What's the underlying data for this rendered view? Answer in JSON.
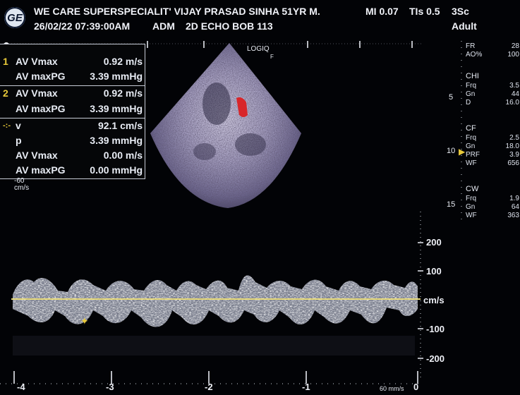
{
  "header": {
    "logo_text": "GE",
    "institution_patient": "WE CARE SUPERSPECIALIT' VIJAY PRASAD SINHA 51YR M.",
    "datetime": "26/02/22 07:39:00AM",
    "operator": "ADM",
    "exam": "2D ECHO BOB 113",
    "mi": "MI 0.07",
    "tis": "TIs 0.5",
    "probe": "3Sc",
    "preset": "Adult"
  },
  "sector": {
    "label": "LOGIQ",
    "focus_marker": "F"
  },
  "measurements": [
    {
      "idx": "1",
      "label": "AV Vmax",
      "value": "0.92 m/s"
    },
    {
      "idx": "",
      "label": "AV maxPG",
      "value": "3.39 mmHg"
    },
    {
      "idx": "2",
      "label": "AV Vmax",
      "value": "0.92 m/s"
    },
    {
      "idx": "",
      "label": "AV maxPG",
      "value": "3.39 mmHg"
    },
    {
      "idx": "-:-",
      "label": "v",
      "value": "92.1 cm/s"
    },
    {
      "idx": "",
      "label": "p",
      "value": "3.39 mmHg"
    },
    {
      "idx": "",
      "label": "AV Vmax",
      "value": "0.00 m/s"
    },
    {
      "idx": "",
      "label": "AV maxPG",
      "value": "0.00 mmHg"
    }
  ],
  "doppler_baseline_label": "-60",
  "doppler_baseline_unit": "cm/s",
  "params": {
    "top": [
      {
        "label": "FR",
        "value": "28"
      },
      {
        "label": "AO%",
        "value": "100"
      }
    ],
    "chi_title": "CHI",
    "chi": [
      {
        "label": "Frq",
        "value": "3.5"
      },
      {
        "label": "Gn",
        "value": "44"
      },
      {
        "label": "D",
        "value": "16.0"
      }
    ],
    "cf_title": "CF",
    "cf": [
      {
        "label": "Frq",
        "value": "2.5"
      },
      {
        "label": "Gn",
        "value": "18.0"
      },
      {
        "label": "PRF",
        "value": "3.9"
      },
      {
        "label": "WF",
        "value": "656"
      }
    ],
    "cw_title": "CW",
    "cw": [
      {
        "label": "Frq",
        "value": "1.9"
      },
      {
        "label": "Gn",
        "value": "64"
      },
      {
        "label": "WF",
        "value": "363"
      }
    ],
    "depth_marks": [
      "5",
      "10",
      "15"
    ]
  },
  "velocity_scale": {
    "unit": "cm/s",
    "ticks": [
      "200",
      "100",
      "-100",
      "-200"
    ]
  },
  "time_scale": {
    "ticks": [
      "-4",
      "-3",
      "-2",
      "-1",
      "0"
    ],
    "sweep": "60 mm/s"
  },
  "colors": {
    "measure_index": "#e8c93a",
    "baseline": "#e6d97a",
    "color_flow": "#d8262a",
    "caliper": "#e8c93a"
  }
}
